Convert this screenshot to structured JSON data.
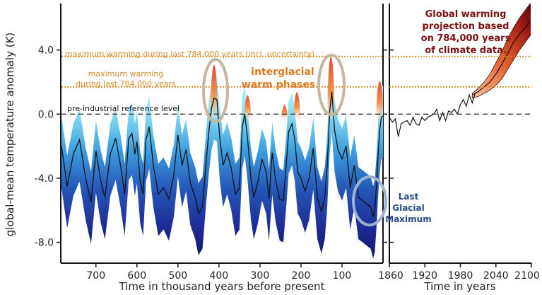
{
  "chart_data": {
    "type": "area",
    "ylabel": "global-mean temperature anomaly (K)",
    "ylim": [
      -9.3,
      6.9
    ],
    "yticks": [
      "4.0",
      "0.0",
      "-4.0",
      "-8.0"
    ],
    "ytick_values": [
      4,
      0,
      -4,
      -8
    ],
    "left_panel": {
      "xlabel": "Time in thousand years before present",
      "xlim": [
        784,
        0
      ],
      "xticks": [
        "700",
        "600",
        "500",
        "400",
        "300",
        "200",
        "100"
      ],
      "xtick_values": [
        700,
        600,
        500,
        400,
        300,
        200,
        100
      ],
      "series": [
        {
          "x": [
            784,
            770,
            755,
            740,
            725,
            712,
            700,
            688,
            678,
            665,
            652,
            640,
            630,
            620,
            612,
            605,
            600,
            592,
            585,
            578,
            570,
            560,
            548,
            535,
            522,
            510,
            500,
            490,
            480,
            470,
            458,
            450,
            440,
            432,
            425,
            418,
            412,
            405,
            398,
            390,
            380,
            370,
            360,
            350,
            343,
            337,
            330,
            322,
            315,
            305,
            295,
            285,
            278,
            270,
            262,
            252,
            243,
            236,
            230,
            222,
            215,
            208,
            200,
            190,
            180,
            170,
            160,
            150,
            142,
            136,
            130,
            125,
            118,
            110,
            100,
            90,
            80,
            70,
            60,
            50,
            40,
            30,
            24,
            20,
            16,
            12,
            8,
            4,
            0
          ],
          "y": [
            -2.0,
            -4.5,
            -2.5,
            -1.6,
            -4.0,
            -5.5,
            -2.3,
            -4.2,
            -5.2,
            -2.5,
            -1.5,
            -3.2,
            -5.0,
            -1.5,
            -1.2,
            -2.5,
            -1.7,
            -4.2,
            -5.0,
            -1.6,
            -0.8,
            -3.2,
            -5.0,
            -4.6,
            -5.3,
            -3.8,
            -1.3,
            -3.2,
            -2.2,
            -4.3,
            -5.2,
            -6.2,
            -5.8,
            -3.2,
            -1.2,
            0.4,
            1.0,
            0.9,
            -1.5,
            -3.2,
            -2.4,
            -3.4,
            -5.0,
            -4.6,
            -0.8,
            0.0,
            -1.6,
            -4.0,
            -5.2,
            -4.2,
            -2.8,
            -3.6,
            -5.3,
            -2.4,
            -4.1,
            -5.3,
            -5.4,
            -3.2,
            -1.1,
            -0.6,
            -1.6,
            -3.6,
            -4.0,
            -4.8,
            -4.0,
            -2.1,
            -5.2,
            -6.1,
            -5.2,
            -3.2,
            0.2,
            1.4,
            -1.0,
            -2.2,
            -2.8,
            -2.0,
            -4.6,
            -3.2,
            -5.2,
            -5.4,
            -5.6,
            -5.8,
            -6.4,
            -6.0,
            -4.5,
            -2.6,
            -1.0,
            -0.2,
            -0.1
          ],
          "band_lower_offset": 2.6,
          "band_upper_offset": 1.9
        }
      ]
    },
    "right_panel": {
      "xlabel": "Time in years",
      "xlim": [
        1860,
        2100
      ],
      "xticks": [
        "1860",
        "1920",
        "1980",
        "2040",
        "2100"
      ],
      "xtick_values": [
        1860,
        1920,
        1980,
        2040,
        2100
      ],
      "series": [
        {
          "x": [
            1860,
            1865,
            1870,
            1875,
            1880,
            1885,
            1890,
            1895,
            1900,
            1905,
            1910,
            1915,
            1920,
            1925,
            1930,
            1935,
            1940,
            1945,
            1950,
            1955,
            1960,
            1965,
            1970,
            1975,
            1980,
            1985,
            1990,
            1995,
            2000,
            2005,
            2010
          ],
          "y": [
            -0.2,
            -0.5,
            -0.3,
            -1.4,
            -0.6,
            -0.5,
            -0.4,
            -0.7,
            -0.2,
            -0.6,
            -0.7,
            -0.2,
            -0.4,
            -0.2,
            -0.1,
            0.0,
            0.3,
            -0.4,
            0.1,
            -0.4,
            0.2,
            0.1,
            0.3,
            0.0,
            0.6,
            0.9,
            0.5,
            1.2,
            0.7,
            1.3,
            1.4
          ]
        }
      ],
      "projection": {
        "x": [
          2000,
          2010,
          2020,
          2030,
          2040,
          2050,
          2060,
          2070,
          2080,
          2090,
          2100
        ],
        "center": [
          1.2,
          1.4,
          1.7,
          2.0,
          2.5,
          3.1,
          3.8,
          4.5,
          5.0,
          5.4,
          5.9
        ],
        "lower": [
          1.0,
          1.1,
          1.3,
          1.5,
          1.8,
          2.2,
          2.8,
          3.4,
          4.0,
          4.5,
          5.0
        ],
        "upper": [
          1.3,
          1.6,
          2.0,
          2.5,
          3.2,
          3.9,
          4.7,
          5.4,
          6.0,
          6.5,
          7.0
        ]
      }
    },
    "reference_lines": [
      {
        "label": "maximum warming during last 784,000 years (incl. uncertainty)",
        "y": 3.6,
        "style": "dotted",
        "color": "#d98a2b"
      },
      {
        "label_line1": "maximum warming",
        "label_line2": "during last 784,000 years",
        "y": 1.7,
        "style": "dotted",
        "color": "#d98a2b"
      },
      {
        "label": "pre-industrial reference level",
        "y": 0.0,
        "style": "dashed",
        "color": "#333333"
      }
    ],
    "interglacial_spikes": [
      {
        "x": 412,
        "height": 3.1
      },
      {
        "x": 330,
        "height": 1.2
      },
      {
        "x": 240,
        "height": 0.6
      },
      {
        "x": 210,
        "height": 1.4
      },
      {
        "x": 127,
        "height": 3.6
      },
      {
        "x": 8,
        "height": 2.1
      }
    ],
    "annotations": {
      "interglacial_line1": "interglacial",
      "interglacial_line2": "warm phases",
      "lgm_line1": "Last",
      "lgm_line2": "Glacial",
      "lgm_line3": "Maximum",
      "projection_line1": "Global warming",
      "projection_line2": "projection based",
      "projection_line3": "on 784,000 years",
      "projection_line4": "of climate data."
    },
    "colors": {
      "line": "#111111",
      "band_deep": "#1a1f8a",
      "band_mid": "#2b79cf",
      "band_light": "#c9f3fb",
      "spike": "#e8592a",
      "spike_light": "#f7b37a",
      "reference_orange": "#d98a2b",
      "interglacial_text": "#e07b22",
      "lgm_text": "#2a4a8a",
      "projection_text": "#7a1010",
      "circle": "#c8b59e",
      "circle_lgm": "#9cb3cf",
      "projection_dark": "#6e0b0b",
      "projection_light": "#f6b07a"
    }
  }
}
